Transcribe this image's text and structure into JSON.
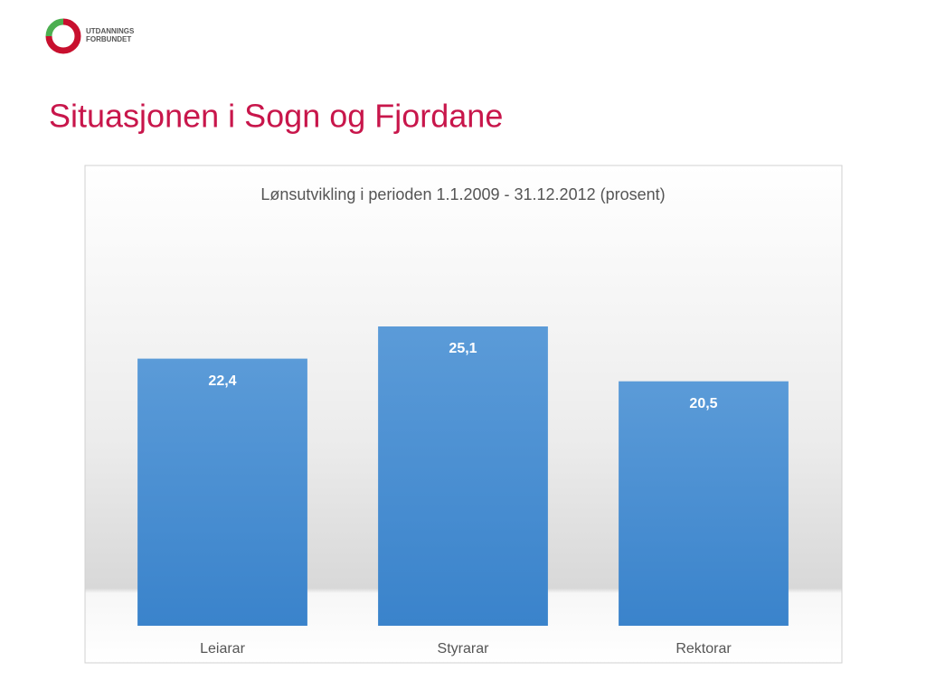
{
  "header": {
    "logo": [
      "UTDANNINGS",
      "FORBUNDET"
    ]
  },
  "slide_title": "Situasjonen i Sogn og Fjordane",
  "chart_data": {
    "type": "bar",
    "title": "Lønsutvikling i perioden 1.1.2009 - 31.12.2012 (prosent)",
    "categories": [
      "Leiarar",
      "Styrarar",
      "Rektorar"
    ],
    "values": [
      22.4,
      25.1,
      20.5
    ],
    "value_labels": [
      "22,4",
      "25,1",
      "20,5"
    ],
    "color": "#4a90d2"
  }
}
